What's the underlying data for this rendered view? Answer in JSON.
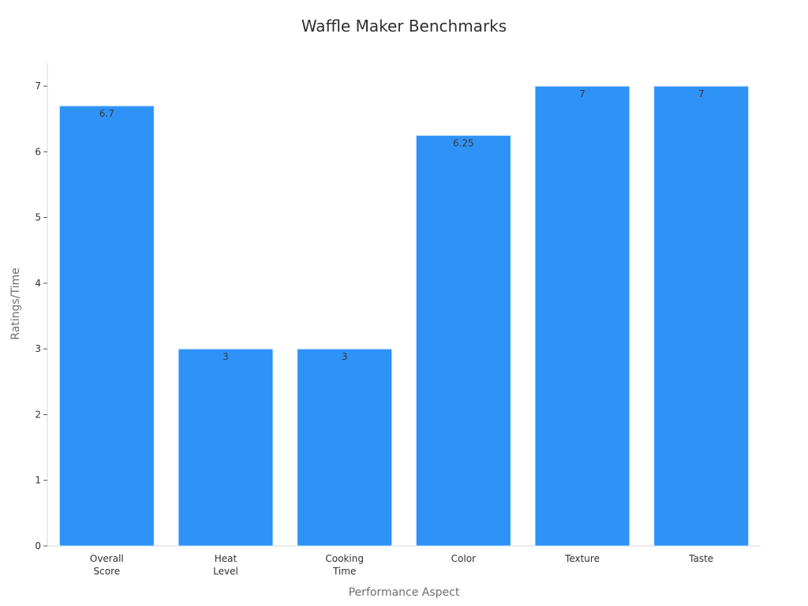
{
  "chart_data": {
    "type": "bar",
    "title": "Waffle Maker Benchmarks",
    "xlabel": "Performance Aspect",
    "ylabel": "Ratings/Time",
    "categories": [
      [
        "Overall",
        "Score"
      ],
      [
        "Heat",
        "Level"
      ],
      [
        "Cooking",
        "Time"
      ],
      [
        "Color"
      ],
      [
        "Texture"
      ],
      [
        "Taste"
      ]
    ],
    "values": [
      6.7,
      3,
      3,
      6.25,
      7,
      7
    ],
    "value_labels": [
      "6.7",
      "3",
      "3",
      "6.25",
      "7",
      "7"
    ],
    "ylim": [
      0,
      7.35
    ],
    "yticks": [
      0,
      1,
      2,
      3,
      4,
      5,
      6,
      7
    ],
    "grid": false,
    "bar_color": "#2f92f7",
    "bar_edge_color": "#dff0ff",
    "axis_color": "#d9d9d9"
  }
}
